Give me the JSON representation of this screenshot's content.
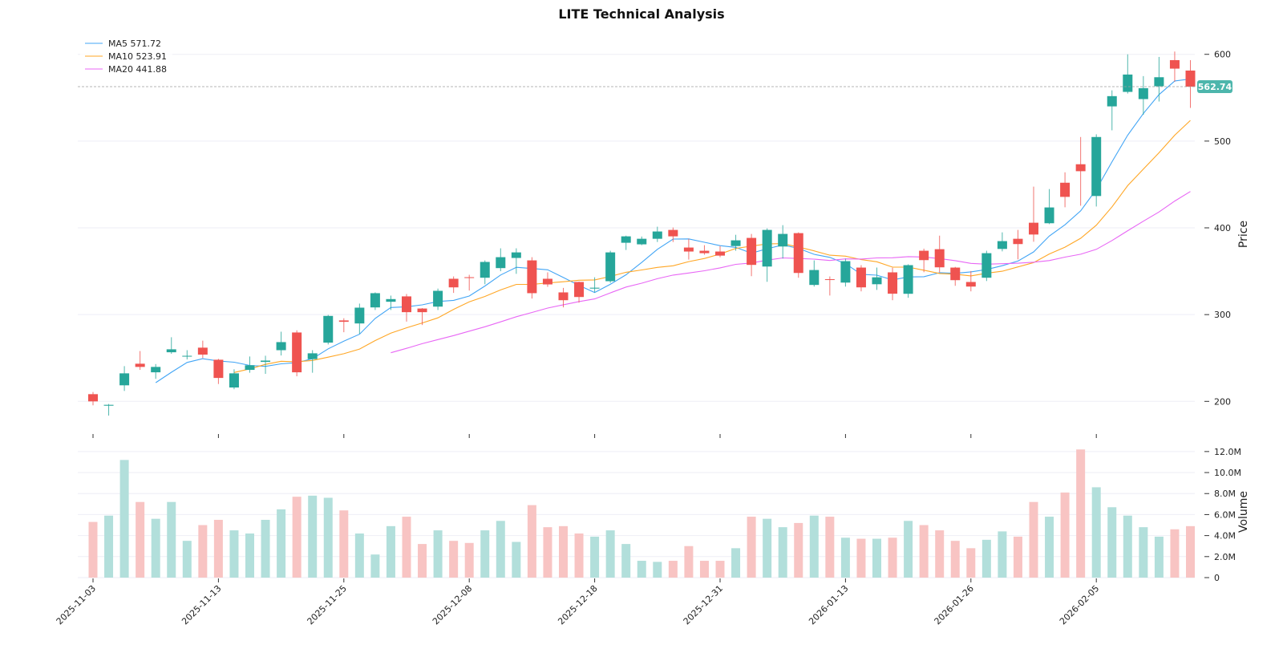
{
  "chart_data": {
    "type": "candlestick",
    "title": "LITE Technical Analysis",
    "ylabel_price": "Price",
    "ylabel_volume": "Volume",
    "price_ylim": [
      167,
      621
    ],
    "price_ticks": [
      200,
      300,
      400,
      500,
      600
    ],
    "volume_ylim": [
      0,
      12.6
    ],
    "volume_ticks": [
      {
        "value": 0,
        "label": "0"
      },
      {
        "value": 2,
        "label": "2.0M"
      },
      {
        "value": 4,
        "label": "4.0M"
      },
      {
        "value": 6,
        "label": "6.0M"
      },
      {
        "value": 8,
        "label": "8.0M"
      },
      {
        "value": 10,
        "label": "10.0M"
      },
      {
        "value": 12,
        "label": "12.0M"
      }
    ],
    "x_tick_labels": [
      "2025-11-03",
      "2025-11-13",
      "2025-11-25",
      "2025-12-08",
      "2025-12-18",
      "2025-12-31",
      "2026-01-13",
      "2026-01-26",
      "2026-02-05"
    ],
    "grid": true,
    "legend_placement": "top-left",
    "legend": [
      {
        "label": "MA5 571.72",
        "period": 5,
        "color": "#42a5f5"
      },
      {
        "label": "MA10 523.91",
        "period": 10,
        "color": "#ffa726"
      },
      {
        "label": "MA20 441.88",
        "period": 20,
        "color": "#e867f5"
      }
    ],
    "last_price": "562.74",
    "colors": {
      "up": "#26a69a",
      "down": "#ef5350",
      "up_volume": "#b2dfdb",
      "down_volume": "#f8c4c3",
      "grid": "#eeeef6"
    },
    "dates": [
      "2025-11-03",
      "2025-11-04",
      "2025-11-05",
      "2025-11-06",
      "2025-11-07",
      "2025-11-10",
      "2025-11-11",
      "2025-11-12",
      "2025-11-13",
      "2025-11-14",
      "2025-11-17",
      "2025-11-18",
      "2025-11-19",
      "2025-11-20",
      "2025-11-21",
      "2025-11-24",
      "2025-11-25",
      "2025-11-26",
      "2025-11-28",
      "2025-12-01",
      "2025-12-02",
      "2025-12-03",
      "2025-12-04",
      "2025-12-05",
      "2025-12-08",
      "2025-12-09",
      "2025-12-10",
      "2025-12-11",
      "2025-12-12",
      "2025-12-15",
      "2025-12-16",
      "2025-12-17",
      "2025-12-18",
      "2025-12-19",
      "2025-12-22",
      "2025-12-23",
      "2025-12-24",
      "2025-12-26",
      "2025-12-29",
      "2025-12-30",
      "2025-12-31",
      "2026-01-02",
      "2026-01-05",
      "2026-01-06",
      "2026-01-07",
      "2026-01-08",
      "2026-01-09",
      "2026-01-12",
      "2026-01-13",
      "2026-01-14",
      "2026-01-15",
      "2026-01-16",
      "2026-01-20",
      "2026-01-21",
      "2026-01-22",
      "2026-01-23",
      "2026-01-26",
      "2026-01-27",
      "2026-01-28",
      "2026-01-29",
      "2026-01-30",
      "2026-02-02",
      "2026-02-03",
      "2026-02-04",
      "2026-02-05",
      "2026-02-06",
      "2026-02-09",
      "2026-02-10",
      "2026-02-11",
      "2026-02-12",
      "2026-02-13"
    ],
    "ohlc": [
      [
        208.3,
        210.8,
        195.4,
        200.0
      ],
      [
        195.0,
        197.0,
        183.6,
        196.0
      ],
      [
        218.5,
        240.6,
        212.0,
        232.3
      ],
      [
        243.4,
        258.0,
        236.3,
        239.7
      ],
      [
        233.5,
        243.0,
        226.0,
        239.7
      ],
      [
        256.6,
        273.9,
        254.8,
        260.0
      ],
      [
        252.0,
        259.0,
        248.3,
        252.5
      ],
      [
        261.9,
        270.0,
        249.9,
        253.9
      ],
      [
        248.0,
        249.0,
        220.0,
        227.0
      ],
      [
        216.0,
        237.0,
        214.0,
        232.3
      ],
      [
        236.3,
        251.7,
        233.0,
        241.6
      ],
      [
        245.5,
        252.6,
        231.7,
        247.0
      ],
      [
        259.0,
        280.3,
        252.9,
        268.3
      ],
      [
        279.4,
        281.9,
        228.9,
        233.5
      ],
      [
        248.7,
        259.0,
        233.0,
        255.4
      ],
      [
        267.7,
        299.7,
        265.6,
        298.5
      ],
      [
        293.3,
        295.8,
        279.7,
        291.7
      ],
      [
        289.8,
        312.7,
        277.8,
        308.0
      ],
      [
        308.3,
        325.6,
        305.3,
        324.7
      ],
      [
        314.8,
        321.9,
        305.3,
        317.9
      ],
      [
        321.0,
        323.7,
        292.0,
        302.8
      ],
      [
        307.0,
        307.5,
        288.0,
        302.8
      ],
      [
        309.2,
        330.0,
        305.3,
        327.4
      ],
      [
        341.3,
        344.0,
        325.0,
        331.4
      ],
      [
        343.1,
        345.9,
        327.7,
        342.5
      ],
      [
        342.5,
        362.5,
        335.0,
        360.7
      ],
      [
        353.6,
        376.4,
        350.0,
        366.2
      ],
      [
        365.3,
        376.4,
        347.0,
        371.7
      ],
      [
        362.5,
        366.2,
        318.5,
        324.7
      ],
      [
        341.3,
        348.7,
        332.0,
        334.8
      ],
      [
        325.6,
        330.8,
        308.3,
        316.6
      ],
      [
        337.6,
        338.0,
        313.8,
        320.3
      ],
      [
        330.0,
        343.0,
        325.6,
        331.0
      ],
      [
        338.5,
        373.6,
        336.7,
        371.7
      ],
      [
        382.8,
        391.0,
        374.5,
        390.2
      ],
      [
        381.0,
        390.0,
        380.0,
        387.4
      ],
      [
        387.4,
        401.3,
        383.7,
        395.8
      ],
      [
        397.6,
        400.4,
        383.7,
        390.2
      ],
      [
        377.3,
        387.4,
        363.4,
        372.7
      ],
      [
        373.6,
        380.0,
        369.0,
        370.8
      ],
      [
        372.7,
        379.0,
        366.2,
        368.0
      ],
      [
        379.0,
        392.0,
        373.6,
        385.6
      ],
      [
        388.4,
        393.0,
        344.3,
        357.3
      ],
      [
        355.4,
        399.4,
        337.8,
        397.6
      ],
      [
        378.5,
        403.1,
        364.6,
        393.0
      ],
      [
        393.9,
        394.8,
        342.5,
        348.0
      ],
      [
        334.2,
        362.5,
        332.3,
        351.4
      ],
      [
        340.8,
        344.0,
        322.0,
        340.0
      ],
      [
        336.9,
        364.4,
        332.3,
        361.6
      ],
      [
        354.2,
        357.0,
        326.8,
        331.4
      ],
      [
        335.0,
        354.2,
        328.5,
        343.0
      ],
      [
        348.7,
        354.0,
        316.6,
        324.1
      ],
      [
        324.0,
        358.0,
        319.4,
        357.0
      ],
      [
        373.6,
        376.0,
        348.9,
        362.8
      ],
      [
        375.4,
        391.0,
        348.9,
        354.5
      ],
      [
        354.2,
        355.0,
        333.2,
        339.7
      ],
      [
        337.6,
        350.2,
        326.8,
        332.3
      ],
      [
        342.5,
        373.6,
        338.7,
        370.8
      ],
      [
        375.7,
        394.8,
        372.9,
        384.7
      ],
      [
        387.4,
        397.6,
        363.7,
        381.3
      ],
      [
        405.9,
        447.5,
        384.0,
        392.3
      ],
      [
        405.3,
        444.7,
        404.3,
        423.5
      ],
      [
        452.0,
        464.0,
        423.7,
        435.7
      ],
      [
        473.3,
        504.7,
        425.5,
        465.3
      ],
      [
        436.7,
        507.8,
        424.6,
        504.7
      ],
      [
        540.0,
        558.5,
        512.4,
        551.8
      ],
      [
        556.7,
        600.0,
        554.8,
        576.7
      ],
      [
        548.4,
        574.9,
        530.3,
        561.0
      ],
      [
        563.2,
        597.0,
        545.6,
        573.6
      ],
      [
        593.3,
        603.2,
        568.4,
        583.5
      ],
      [
        581.3,
        593.3,
        538.2,
        562.74
      ]
    ],
    "volume_millions": [
      5.3,
      5.9,
      11.2,
      7.2,
      5.6,
      7.2,
      3.5,
      5.0,
      5.5,
      4.5,
      4.2,
      5.5,
      6.5,
      7.7,
      7.8,
      7.6,
      6.4,
      4.2,
      2.2,
      4.9,
      5.8,
      3.2,
      4.5,
      3.5,
      3.3,
      4.5,
      5.4,
      3.4,
      6.9,
      4.8,
      4.9,
      4.2,
      3.9,
      4.5,
      3.2,
      1.6,
      1.5,
      1.6,
      3.0,
      1.6,
      1.6,
      2.8,
      5.8,
      5.6,
      4.8,
      5.2,
      5.9,
      5.8,
      3.8,
      3.7,
      3.7,
      3.8,
      5.4,
      5.0,
      4.5,
      3.5,
      2.8,
      3.6,
      4.4,
      3.9,
      7.2,
      5.8,
      8.1,
      12.2,
      8.6,
      6.7,
      5.9,
      4.8,
      3.9,
      4.6,
      4.9
    ]
  }
}
